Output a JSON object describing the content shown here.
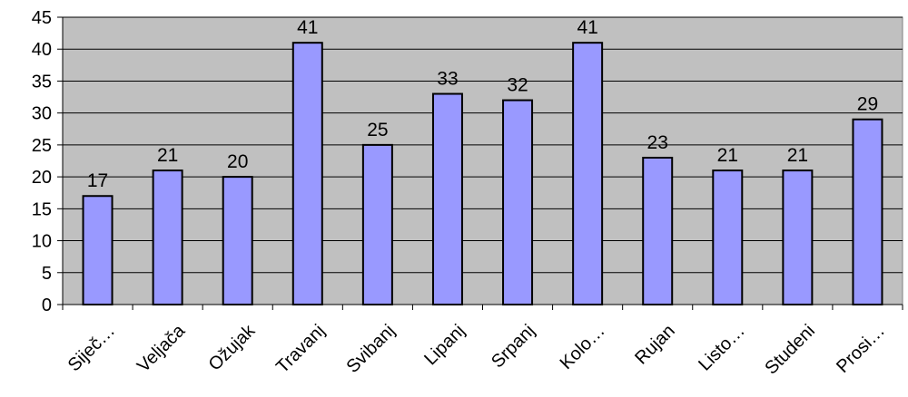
{
  "chart_data": {
    "type": "bar",
    "categories": [
      "Siječ…",
      "Veljača",
      "Ožujak",
      "Travanj",
      "Svibanj",
      "Lipanj",
      "Srpanj",
      "Kolo…",
      "Rujan",
      "Listo…",
      "Studeni",
      "Prosi…"
    ],
    "values": [
      17,
      21,
      20,
      41,
      25,
      33,
      32,
      41,
      23,
      21,
      21,
      29
    ],
    "data_labels": [
      "17",
      "21",
      "20",
      "41",
      "25",
      "33",
      "32",
      "41",
      "23",
      "21",
      "21",
      "29"
    ],
    "y_ticks": [
      "0",
      "5",
      "10",
      "15",
      "20",
      "25",
      "30",
      "35",
      "40",
      "45"
    ],
    "ylim": [
      0,
      45
    ],
    "grid": true,
    "legend": "none",
    "colors": {
      "plot_background": "#c0c0c0",
      "bar_fill": "#9999ff",
      "bar_stroke": "#000000",
      "gridline": "#000000"
    }
  }
}
